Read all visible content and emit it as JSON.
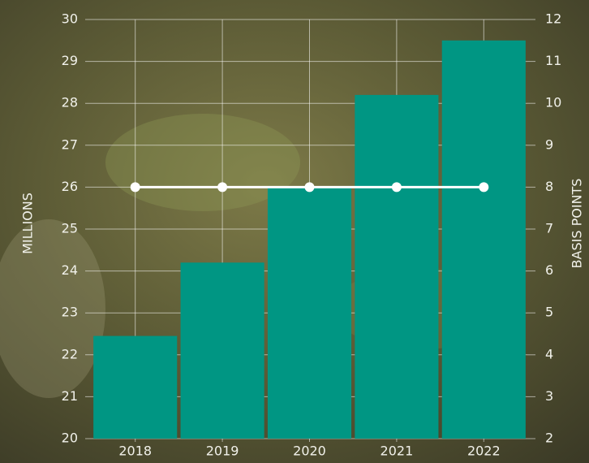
{
  "chart_data": {
    "type": "bar",
    "categories": [
      "2018",
      "2019",
      "2020",
      "2021",
      "2022"
    ],
    "series": [
      {
        "type": "bar",
        "color": "#009683",
        "values": [
          22.45,
          24.2,
          26.0,
          28.2,
          29.5
        ]
      },
      {
        "type": "line",
        "axis": "y2",
        "color": "#ffffff",
        "values": [
          8,
          8,
          8,
          8,
          8
        ]
      }
    ],
    "ylim": [
      20,
      30
    ],
    "yticks": [
      20,
      21,
      22,
      23,
      24,
      25,
      26,
      27,
      28,
      29,
      30
    ],
    "y2lim": [
      2,
      12
    ],
    "y2ticks": [
      2,
      3,
      4,
      5,
      6,
      7,
      8,
      9,
      10,
      11,
      12
    ],
    "ylabel": "MILLIONS",
    "y2label": "BASIS POINTS",
    "grid": true
  }
}
